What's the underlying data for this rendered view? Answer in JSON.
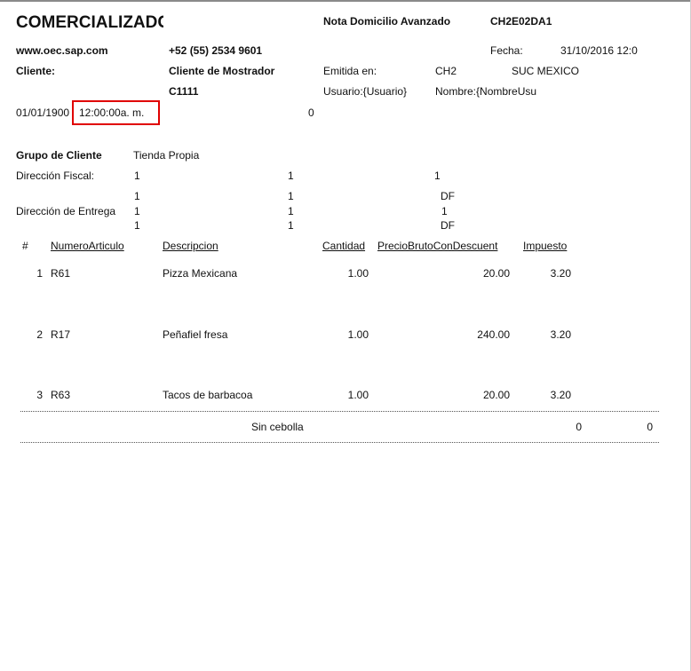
{
  "header": {
    "company": "COMERCIALIZADC",
    "doc_type": "Nota Domicilio Avanzado",
    "doc_code": "CH2E02DA1",
    "website": "www.oec.sap.com",
    "phone": "+52 (55) 2534 9601",
    "fecha_label": "Fecha:",
    "fecha_value": "31/10/2016  12:0",
    "cliente_label": "Cliente:",
    "cliente_name": "Cliente de Mostrador",
    "cliente_code": "C1111",
    "emitida_label": "Emitida en:",
    "emitida_code": "CH2",
    "emitida_branch": "SUC MEXICO",
    "usuario": "Usuario:{Usuario}",
    "nombre": "Nombre:{NombreUsu",
    "date": "01/01/1900",
    "time": "12:00:00a. m.",
    "zero": "0"
  },
  "customer": {
    "grupo_label": "Grupo de Cliente",
    "grupo_value": "Tienda Propia",
    "fiscal_label": "Dirección Fiscal:",
    "fiscal": [
      "1",
      "1",
      "1"
    ],
    "entrega_label": "Dirección de Entrega",
    "entrega": [
      [
        "1",
        "1",
        "DF"
      ],
      [
        "1",
        "1",
        "1"
      ],
      [
        "1",
        "1",
        "DF"
      ]
    ]
  },
  "table": {
    "headers": [
      "#",
      "NumeroArticulo",
      "Descripcion",
      "Cantidad",
      "PrecioBrutoConDescuent",
      "Impuesto"
    ],
    "rows": [
      {
        "num": "1",
        "code": "R61",
        "desc": "Pizza Mexicana",
        "qty": "1.00",
        "price": "20.00",
        "tax": "3.20"
      },
      {
        "num": "2",
        "code": "R17",
        "desc": "Peñafiel fresa",
        "qty": "1.00",
        "price": "240.00",
        "tax": "3.20"
      },
      {
        "num": "3",
        "code": "R63",
        "desc": "Tacos de barbacoa",
        "qty": "1.00",
        "price": "20.00",
        "tax": "3.20"
      }
    ],
    "note": {
      "text": "Sin cebolla",
      "v1": "0",
      "v2": "0"
    }
  },
  "colors": {
    "highlight_box": "#e00000"
  }
}
